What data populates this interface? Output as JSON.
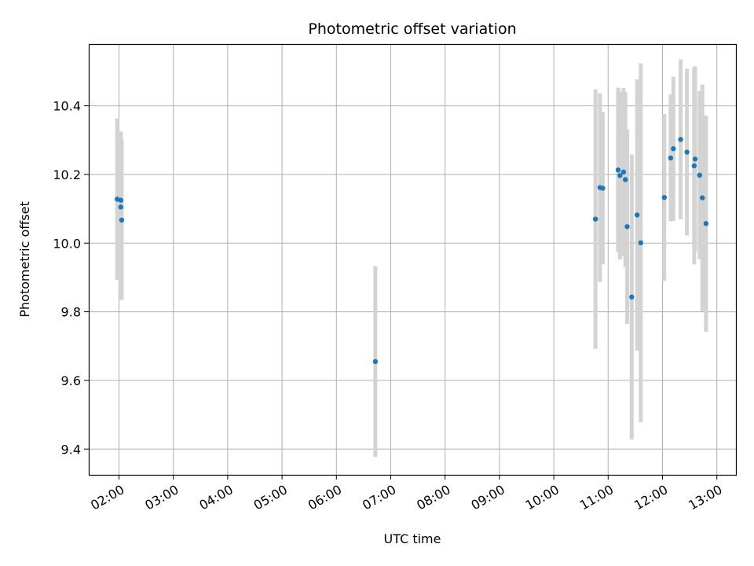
{
  "chart_data": {
    "type": "scatter",
    "title": "Photometric offset variation",
    "xlabel": "UTC time",
    "ylabel": "Photometric offset",
    "x_ticks": [
      "02:00",
      "03:00",
      "04:00",
      "05:00",
      "06:00",
      "07:00",
      "08:00",
      "09:00",
      "10:00",
      "11:00",
      "12:00",
      "13:00"
    ],
    "y_ticks": [
      9.4,
      9.6,
      9.8,
      10.0,
      10.2,
      10.4
    ],
    "y_tick_labels": [
      "9.4",
      "9.6",
      "9.8",
      "10.0",
      "10.2",
      "10.4"
    ],
    "xlim": [
      "01:27",
      "12:48"
    ],
    "ylim": [
      9.325,
      10.58
    ],
    "grid": true,
    "marker_color": "#1f77b4",
    "errorbar_color": "#d3d3d3",
    "points": [
      {
        "x": "01:58",
        "y": 10.128,
        "err": 0.235
      },
      {
        "x": "02:02",
        "y": 10.125,
        "err": 0.2
      },
      {
        "x": "02:02",
        "y": 10.105,
        "err": 0.22
      },
      {
        "x": "02:03",
        "y": 10.067,
        "err": 0.233
      },
      {
        "x": "06:43",
        "y": 9.655,
        "err": 0.278
      },
      {
        "x": "10:46",
        "y": 10.07,
        "err": 0.378
      },
      {
        "x": "10:51",
        "y": 10.162,
        "err": 0.275
      },
      {
        "x": "10:54",
        "y": 10.16,
        "err": 0.222
      },
      {
        "x": "11:11",
        "y": 10.213,
        "err": 0.24
      },
      {
        "x": "11:13",
        "y": 10.197,
        "err": 0.245
      },
      {
        "x": "11:17",
        "y": 10.207,
        "err": 0.245
      },
      {
        "x": "11:19",
        "y": 10.185,
        "err": 0.255
      },
      {
        "x": "11:21",
        "y": 10.048,
        "err": 0.283
      },
      {
        "x": "11:26",
        "y": 9.843,
        "err": 0.415
      },
      {
        "x": "11:32",
        "y": 10.082,
        "err": 0.395
      },
      {
        "x": "11:36",
        "y": 10.001,
        "err": 0.523
      },
      {
        "x": "12:02",
        "y": 10.133,
        "err": 0.243
      },
      {
        "x": "12:09",
        "y": 10.248,
        "err": 0.185
      },
      {
        "x": "12:12",
        "y": 10.275,
        "err": 0.21
      },
      {
        "x": "12:20",
        "y": 10.302,
        "err": 0.233
      },
      {
        "x": "12:27",
        "y": 10.265,
        "err": 0.243
      },
      {
        "x": "12:35",
        "y": 10.225,
        "err": 0.287
      },
      {
        "x": "12:36",
        "y": 10.245,
        "err": 0.27
      },
      {
        "x": "12:41",
        "y": 10.198,
        "err": 0.245
      },
      {
        "x": "12:44",
        "y": 10.132,
        "err": 0.33
      },
      {
        "x": "12:48",
        "y": 10.057,
        "err": 0.315
      }
    ]
  }
}
